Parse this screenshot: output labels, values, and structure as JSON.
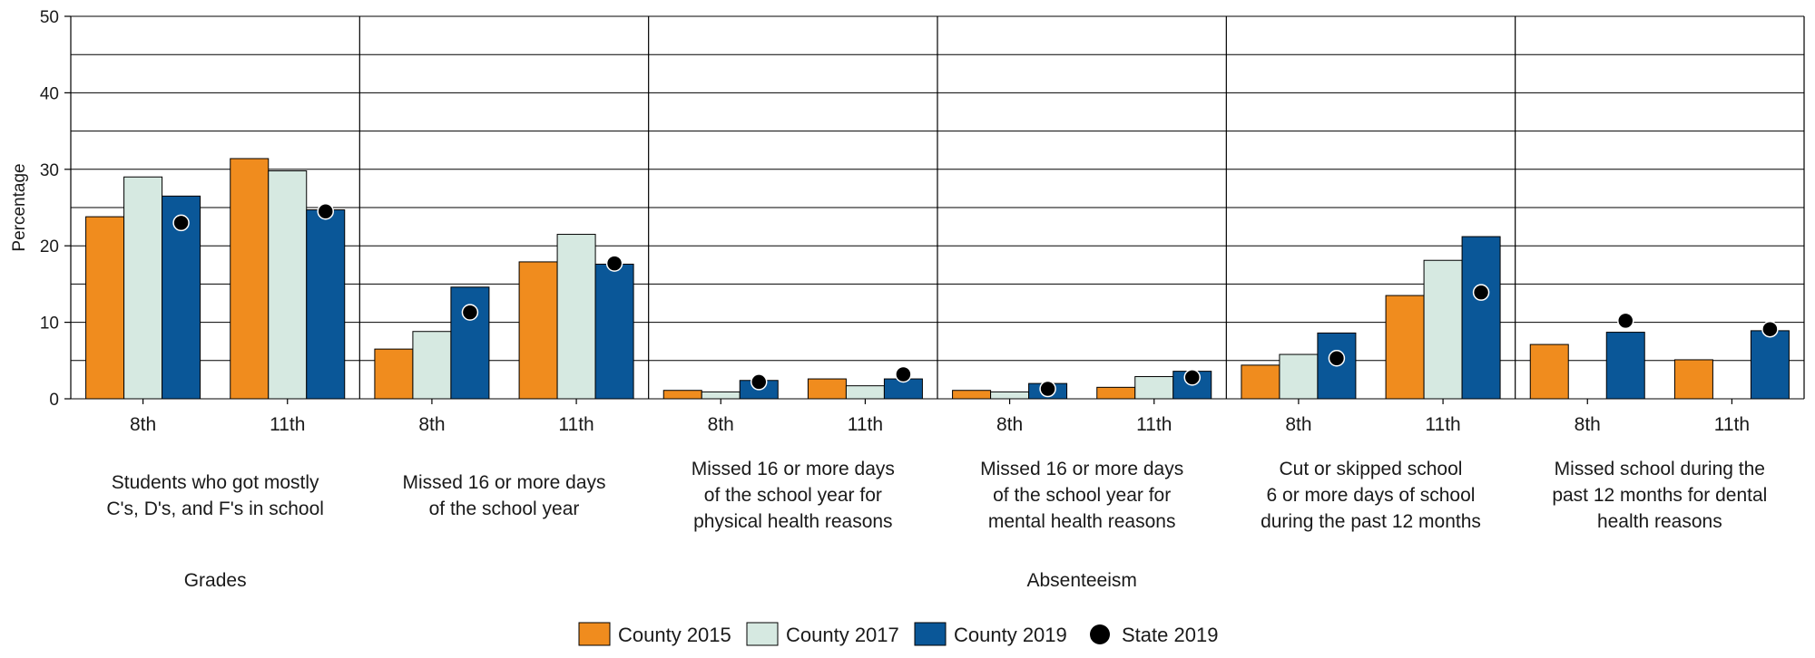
{
  "chart_data": {
    "type": "bar",
    "ylabel": "Percentage",
    "ylim": [
      0,
      50
    ],
    "yticks": [
      0,
      10,
      20,
      30,
      40,
      50
    ],
    "gridlines": [
      0,
      5,
      10,
      15,
      20,
      25,
      30,
      35,
      40,
      45,
      50
    ],
    "sections": [
      {
        "label": "Grades",
        "groups": [
          0
        ]
      },
      {
        "label": "Absenteeism",
        "groups": [
          1,
          2,
          3,
          4,
          5
        ]
      }
    ],
    "groups": [
      {
        "label": [
          "Students who got mostly",
          "C's, D's, and F's in school"
        ],
        "grades": [
          "8th",
          "11th"
        ]
      },
      {
        "label": [
          "Missed 16 or more days",
          "of the school year"
        ],
        "grades": [
          "8th",
          "11th"
        ]
      },
      {
        "label": [
          "Missed 16 or more days",
          "of the school year for",
          "physical health reasons"
        ],
        "grades": [
          "8th",
          "11th"
        ]
      },
      {
        "label": [
          "Missed 16 or more days",
          "of the school year for",
          "mental health reasons"
        ],
        "grades": [
          "8th",
          "11th"
        ]
      },
      {
        "label": [
          "Cut or skipped school",
          "6 or more days of school",
          "during the past 12 months"
        ],
        "grades": [
          "8th",
          "11th"
        ]
      },
      {
        "label": [
          "Missed school during the",
          "past 12 months for dental",
          "health reasons"
        ],
        "grades": [
          "8th",
          "11th"
        ]
      }
    ],
    "series": [
      {
        "name": "County 2015",
        "color": "#f08c1e",
        "kind": "bar",
        "values": [
          23.8,
          31.4,
          6.5,
          17.9,
          1.1,
          2.6,
          1.1,
          1.5,
          4.4,
          13.5,
          7.1,
          5.1
        ]
      },
      {
        "name": "County 2017",
        "color": "#d6e9e1",
        "kind": "bar",
        "values": [
          29.0,
          29.8,
          8.8,
          21.5,
          0.9,
          1.7,
          0.9,
          2.9,
          5.8,
          18.1,
          null,
          null
        ]
      },
      {
        "name": "County 2019",
        "color": "#0a5798",
        "kind": "bar",
        "values": [
          26.5,
          24.7,
          14.6,
          17.6,
          2.4,
          2.6,
          2.0,
          3.6,
          8.6,
          21.2,
          8.7,
          8.9
        ]
      },
      {
        "name": "State 2019",
        "color": "#000000",
        "kind": "dot",
        "values": [
          23.0,
          24.5,
          11.3,
          17.7,
          2.2,
          3.2,
          1.3,
          2.8,
          5.3,
          13.9,
          10.2,
          9.1
        ]
      }
    ],
    "legend_position": "bottom-center"
  }
}
